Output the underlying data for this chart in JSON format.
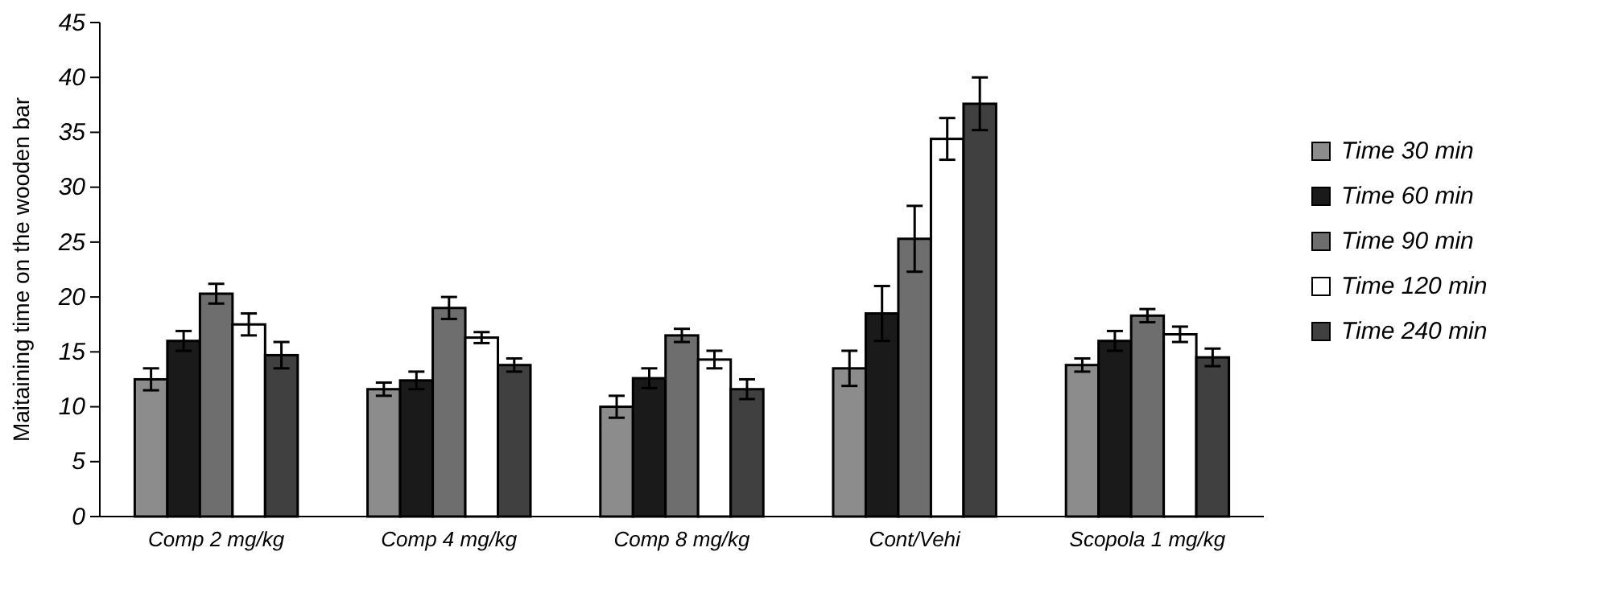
{
  "chart_data": {
    "type": "bar",
    "ylabel": "Maitaining time on the wooden bar",
    "categories": [
      "Comp 2 mg/kg",
      "Comp 4 mg/kg",
      "Comp 8 mg/kg",
      "Cont/Vehi",
      "Scopola 1 mg/kg"
    ],
    "series": [
      {
        "name": "Time 30 min",
        "color": "#8c8c8c",
        "values": [
          12.5,
          11.6,
          10,
          13.5,
          13.8
        ],
        "errors": [
          1,
          0.6,
          1,
          1.6,
          0.6
        ]
      },
      {
        "name": "Time 60 min",
        "color": "#1a1a1a",
        "values": [
          16,
          12.4,
          12.6,
          18.5,
          16
        ],
        "errors": [
          0.9,
          0.8,
          0.9,
          2.5,
          0.9
        ]
      },
      {
        "name": "Time 90 min",
        "color": "#6e6e6e",
        "values": [
          20.3,
          19,
          16.5,
          25.3,
          18.3
        ],
        "errors": [
          0.9,
          1,
          0.6,
          3,
          0.6
        ]
      },
      {
        "name": "Time 120 min",
        "color": "#ffffff",
        "values": [
          17.5,
          16.3,
          14.3,
          34.4,
          16.6
        ],
        "errors": [
          1,
          0.5,
          0.8,
          1.9,
          0.7
        ]
      },
      {
        "name": "Time 240 min",
        "color": "#404040",
        "values": [
          14.7,
          13.8,
          11.6,
          37.6,
          14.5
        ],
        "errors": [
          1.2,
          0.6,
          0.9,
          2.4,
          0.8
        ]
      }
    ],
    "ylim": [
      0,
      45
    ],
    "yticks": [
      0,
      5,
      10,
      15,
      20,
      25,
      30,
      35,
      40,
      45
    ],
    "grid": false,
    "legend": "right"
  }
}
